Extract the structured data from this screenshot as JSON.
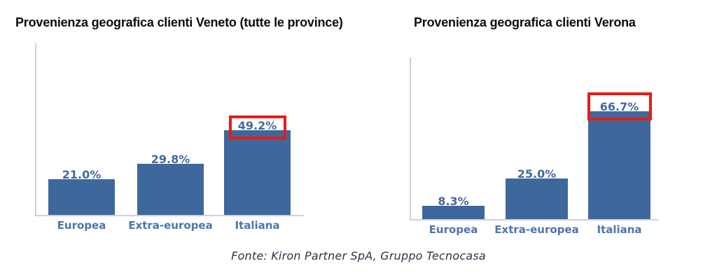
{
  "chart_data": [
    {
      "type": "bar",
      "title": "Provenienza geografica clienti Veneto (tutte le province)",
      "categories": [
        "Europea",
        "Extra-europea",
        "Italiana"
      ],
      "values": [
        21.0,
        29.8,
        49.2
      ],
      "data_labels": [
        "21.0%",
        "29.8%",
        "49.2%"
      ],
      "xlabel": "",
      "ylabel": "",
      "ylim": [
        0,
        100
      ],
      "grid": false,
      "legend": "none",
      "highlight_index": 2
    },
    {
      "type": "bar",
      "title": "Provenienza geografica clienti Verona",
      "categories": [
        "Europea",
        "Extra-europea",
        "Italiana"
      ],
      "values": [
        8.3,
        25.0,
        66.7
      ],
      "data_labels": [
        "8.3%",
        "25.0%",
        "66.7%"
      ],
      "xlabel": "",
      "ylabel": "",
      "ylim": [
        0,
        100
      ],
      "grid": false,
      "legend": "none",
      "highlight_index": 2
    }
  ],
  "footer": {
    "text": "Fonte: Kiron Partner SpA, Gruppo Tecnocasa"
  },
  "colors": {
    "bar": "#3e689b",
    "value_label": "#44699f",
    "category_label": "#4c76ac",
    "axis": "#c7d2e2",
    "highlight_box": "#e81b17",
    "title": "#0d0d0d",
    "footer": "#2e3448"
  }
}
